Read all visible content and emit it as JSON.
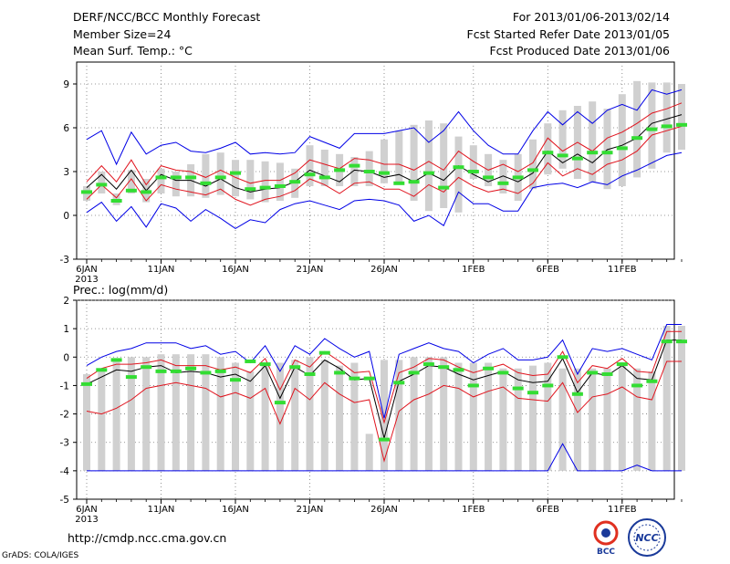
{
  "header": {
    "title": "DERF/NCC/BCC Monthly Forecast",
    "member_size": "Member Size=24",
    "variable": "Mean Surf. Temp.: °C",
    "period": "For 2013/01/06-2013/02/14",
    "start_date": "Fcst Started Refer Date 2013/01/05",
    "produced_date": "Fcst Produced Date 2013/01/06"
  },
  "footer": {
    "url": "http://cmdp.ncc.cma.gov.cn",
    "grads": "GrADS: COLA/IGES",
    "logo_left": "BCC",
    "logo_right": "NCC"
  },
  "colors": {
    "bar": "#d0d0d0",
    "ensemble_mean": "#000000",
    "inner_band": "#e0141e",
    "outer_band": "#0000e6",
    "observed_marker": "#33dd33",
    "logo_red": "#e03020",
    "logo_blue": "#1a3a9a"
  },
  "chart_data": [
    {
      "type": "bar",
      "name": "temperature",
      "ylabel": "Mean Surf. Temp.: °C",
      "ylim": [
        -3,
        10.5
      ],
      "yticks": [
        -3,
        0,
        3,
        6,
        9
      ],
      "xticks": [
        {
          "day": 0,
          "label": "6JAN",
          "sub": "2013"
        },
        {
          "day": 5,
          "label": "11JAN"
        },
        {
          "day": 10,
          "label": "16JAN"
        },
        {
          "day": 15,
          "label": "21JAN"
        },
        {
          "day": 20,
          "label": "26JAN"
        },
        {
          "day": 26,
          "label": "1FEB"
        },
        {
          "day": 31,
          "label": "6FEB"
        },
        {
          "day": 36,
          "label": "11FEB"
        }
      ],
      "bar_low": [
        1.0,
        1.5,
        0.7,
        1.5,
        0.9,
        1.5,
        1.3,
        1.3,
        1.2,
        1.4,
        1.3,
        1.1,
        0.9,
        1.0,
        1.2,
        2.0,
        2.0,
        2.0,
        2.0,
        2.0,
        2.2,
        2.2,
        1.0,
        0.3,
        0.5,
        0.2,
        2.5,
        2.0,
        1.5,
        1.0,
        1.8,
        2.8,
        3.2,
        2.5,
        2.3,
        1.8,
        2.0,
        2.6,
        3.2,
        4.3,
        4.5
      ],
      "bar_high": [
        2.0,
        3.0,
        1.5,
        3.1,
        2.5,
        3.2,
        3.0,
        3.5,
        4.2,
        4.3,
        3.8,
        3.8,
        3.7,
        3.6,
        3.2,
        4.8,
        4.5,
        4.2,
        4.0,
        4.4,
        5.2,
        5.8,
        6.2,
        6.5,
        6.3,
        5.4,
        4.8,
        4.2,
        3.8,
        4.2,
        5.2,
        6.3,
        7.2,
        7.5,
        7.8,
        7.3,
        8.3,
        9.2,
        9.1,
        9.1,
        9.0
      ],
      "series": [
        {
          "name": "ensemble-mean",
          "values": [
            1.9,
            2.8,
            1.8,
            3.1,
            1.7,
            2.8,
            2.4,
            2.4,
            2.0,
            2.5,
            1.9,
            1.6,
            1.8,
            1.9,
            2.3,
            3.1,
            2.7,
            2.3,
            3.1,
            3.0,
            2.6,
            2.8,
            2.3,
            2.9,
            2.4,
            3.4,
            2.8,
            2.3,
            2.7,
            2.3,
            2.9,
            4.4,
            3.6,
            4.2,
            3.6,
            4.5,
            4.8,
            5.3,
            6.3,
            6.6,
            6.9
          ]
        },
        {
          "name": "inner-upper",
          "values": [
            2.3,
            3.4,
            2.3,
            3.8,
            2.1,
            3.4,
            3.1,
            3.0,
            2.6,
            3.1,
            2.6,
            2.2,
            2.4,
            2.4,
            2.9,
            3.8,
            3.5,
            3.2,
            3.9,
            3.8,
            3.5,
            3.5,
            3.1,
            3.7,
            3.1,
            4.4,
            3.7,
            3.1,
            3.5,
            3.0,
            3.6,
            5.3,
            4.4,
            5.0,
            4.4,
            5.3,
            5.7,
            6.3,
            7.0,
            7.3,
            7.7
          ]
        },
        {
          "name": "inner-lower",
          "values": [
            1.1,
            2.1,
            1.2,
            2.5,
            1.0,
            2.1,
            1.8,
            1.6,
            1.4,
            1.8,
            1.1,
            0.7,
            1.1,
            1.3,
            1.7,
            2.5,
            2.1,
            1.5,
            2.2,
            2.3,
            1.8,
            1.8,
            1.3,
            2.1,
            1.6,
            2.6,
            2.0,
            1.6,
            1.8,
            1.5,
            2.2,
            3.6,
            2.7,
            3.2,
            2.8,
            3.5,
            3.8,
            4.4,
            5.5,
            5.8,
            6.1
          ]
        },
        {
          "name": "outer-upper",
          "values": [
            5.2,
            5.8,
            3.5,
            5.7,
            4.2,
            4.8,
            5.0,
            4.4,
            4.3,
            4.6,
            5.0,
            4.2,
            4.3,
            4.2,
            4.3,
            5.4,
            5.0,
            4.6,
            5.6,
            5.6,
            5.6,
            5.8,
            6.0,
            5.0,
            5.8,
            7.1,
            5.8,
            4.8,
            4.2,
            4.2,
            5.8,
            7.1,
            6.2,
            7.1,
            6.3,
            7.2,
            7.6,
            7.2,
            8.6,
            8.3,
            8.6
          ]
        },
        {
          "name": "outer-lower",
          "values": [
            0.2,
            0.9,
            -0.4,
            0.6,
            -0.8,
            0.8,
            0.5,
            -0.4,
            0.4,
            -0.2,
            -0.9,
            -0.3,
            -0.5,
            0.4,
            0.8,
            1.0,
            0.7,
            0.4,
            1.0,
            1.1,
            1.0,
            0.7,
            -0.4,
            0.0,
            -0.7,
            1.6,
            0.8,
            0.8,
            0.3,
            0.3,
            1.9,
            2.1,
            2.2,
            1.9,
            2.3,
            2.1,
            2.7,
            3.1,
            3.6,
            4.1,
            4.3
          ]
        }
      ],
      "observed": [
        1.6,
        2.1,
        1.0,
        1.7,
        1.6,
        2.6,
        2.6,
        2.6,
        2.2,
        2.6,
        2.9,
        1.8,
        1.9,
        2.0,
        2.3,
        2.8,
        2.6,
        3.1,
        3.4,
        3.0,
        2.9,
        2.2,
        2.3,
        2.9,
        1.9,
        3.3,
        3.0,
        2.6,
        2.2,
        2.6,
        3.1,
        4.3,
        4.1,
        3.9,
        4.3,
        4.3,
        4.6,
        5.3,
        5.9,
        6.1,
        6.2
      ]
    },
    {
      "type": "bar",
      "name": "precipitation",
      "ylabel": "Prec.: log(mm/d)",
      "ylim": [
        -5,
        2
      ],
      "yticks": [
        -5,
        -4,
        -3,
        -2,
        -1,
        0,
        1,
        2
      ],
      "xticks": [
        {
          "day": 0,
          "label": "6JAN",
          "sub": "2013"
        },
        {
          "day": 5,
          "label": "11JAN"
        },
        {
          "day": 10,
          "label": "16JAN"
        },
        {
          "day": 15,
          "label": "21JAN"
        },
        {
          "day": 20,
          "label": "26JAN"
        },
        {
          "day": 26,
          "label": "1FEB"
        },
        {
          "day": 31,
          "label": "6FEB"
        },
        {
          "day": 36,
          "label": "11FEB"
        }
      ],
      "bar_base": -4,
      "bar_high": [
        -0.6,
        -0.4,
        -0.1,
        0.0,
        0.0,
        0.1,
        0.1,
        0.1,
        0.1,
        0.0,
        -0.2,
        -0.5,
        -0.3,
        -0.2,
        -0.1,
        0.0,
        -0.1,
        -0.3,
        -0.2,
        -2.7,
        -0.1,
        -0.1,
        0.0,
        0.0,
        0.0,
        -0.2,
        -0.2,
        -0.2,
        -0.4,
        -0.4,
        -0.3,
        -0.2,
        -0.4,
        -0.4,
        -0.4,
        -0.4,
        -0.3,
        -0.4,
        -0.5,
        1.1,
        1.1
      ],
      "series": [
        {
          "name": "ensemble-mean",
          "values": [
            -0.95,
            -0.7,
            -0.45,
            -0.5,
            -0.35,
            -0.3,
            -0.55,
            -0.5,
            -0.55,
            -0.7,
            -0.6,
            -0.85,
            -0.3,
            -1.45,
            -0.35,
            -0.65,
            -0.1,
            -0.4,
            -0.8,
            -0.75,
            -2.85,
            -0.85,
            -0.6,
            -0.3,
            -0.35,
            -0.6,
            -0.8,
            -0.65,
            -0.5,
            -0.8,
            -0.9,
            -0.85,
            -0.05,
            -1.25,
            -0.55,
            -0.65,
            -0.3,
            -0.75,
            -0.8,
            0.6,
            0.6
          ]
        },
        {
          "name": "inner-upper",
          "values": [
            -0.75,
            -0.4,
            -0.25,
            -0.25,
            -0.2,
            -0.1,
            -0.3,
            -0.3,
            -0.3,
            -0.45,
            -0.35,
            -0.55,
            -0.05,
            -1.15,
            -0.1,
            -0.35,
            0.2,
            -0.15,
            -0.55,
            -0.5,
            -2.3,
            -0.55,
            -0.35,
            -0.05,
            -0.1,
            -0.35,
            -0.55,
            -0.4,
            -0.25,
            -0.55,
            -0.65,
            -0.6,
            0.2,
            -0.9,
            -0.3,
            -0.4,
            -0.05,
            -0.5,
            -0.55,
            0.9,
            0.9
          ]
        },
        {
          "name": "inner-lower",
          "values": [
            -1.9,
            -2.0,
            -1.8,
            -1.5,
            -1.1,
            -1.0,
            -0.9,
            -1.0,
            -1.1,
            -1.4,
            -1.25,
            -1.45,
            -1.1,
            -2.35,
            -1.1,
            -1.5,
            -0.9,
            -1.3,
            -1.6,
            -1.5,
            -3.65,
            -1.9,
            -1.5,
            -1.3,
            -1.0,
            -1.1,
            -1.4,
            -1.2,
            -1.05,
            -1.45,
            -1.5,
            -1.55,
            -0.9,
            -1.95,
            -1.4,
            -1.3,
            -1.05,
            -1.4,
            -1.5,
            -0.15,
            -0.15
          ]
        },
        {
          "name": "outer-upper",
          "values": [
            -0.3,
            0.0,
            0.2,
            0.3,
            0.5,
            0.5,
            0.5,
            0.3,
            0.4,
            0.1,
            0.2,
            -0.2,
            0.4,
            -0.5,
            0.4,
            0.1,
            0.65,
            0.3,
            0.0,
            0.2,
            -2.15,
            0.1,
            0.3,
            0.5,
            0.3,
            0.2,
            -0.2,
            0.1,
            0.3,
            -0.1,
            -0.1,
            0.0,
            0.6,
            -0.6,
            0.3,
            0.2,
            0.3,
            0.1,
            -0.1,
            1.15,
            1.15
          ]
        },
        {
          "name": "outer-lower",
          "values": [
            -4.0,
            -4.0,
            -4.0,
            -4.0,
            -4.0,
            -4.0,
            -4.0,
            -4.0,
            -4.0,
            -4.0,
            -4.0,
            -4.0,
            -4.0,
            -4.0,
            -4.0,
            -4.0,
            -4.0,
            -4.0,
            -4.0,
            -4.0,
            -4.0,
            -4.0,
            -4.0,
            -4.0,
            -4.0,
            -4.0,
            -4.0,
            -4.0,
            -4.0,
            -4.0,
            -4.0,
            -4.0,
            -3.05,
            -4.0,
            -4.0,
            -4.0,
            -4.0,
            -3.8,
            -4.0,
            -4.0,
            -4.0
          ]
        }
      ],
      "observed": [
        -0.95,
        -0.45,
        -0.1,
        -0.7,
        -0.35,
        -0.5,
        -0.5,
        -0.4,
        -0.55,
        -0.5,
        -0.8,
        -0.15,
        -0.25,
        -1.6,
        -0.35,
        -0.6,
        0.15,
        -0.55,
        -0.75,
        -0.75,
        -2.9,
        -0.9,
        -0.55,
        -0.25,
        -0.35,
        -0.45,
        -1.0,
        -0.4,
        -0.55,
        -1.1,
        -1.25,
        -1.0,
        0.0,
        -1.3,
        -0.55,
        -0.6,
        -0.25,
        -1.0,
        -0.85,
        0.55,
        0.55
      ]
    }
  ]
}
